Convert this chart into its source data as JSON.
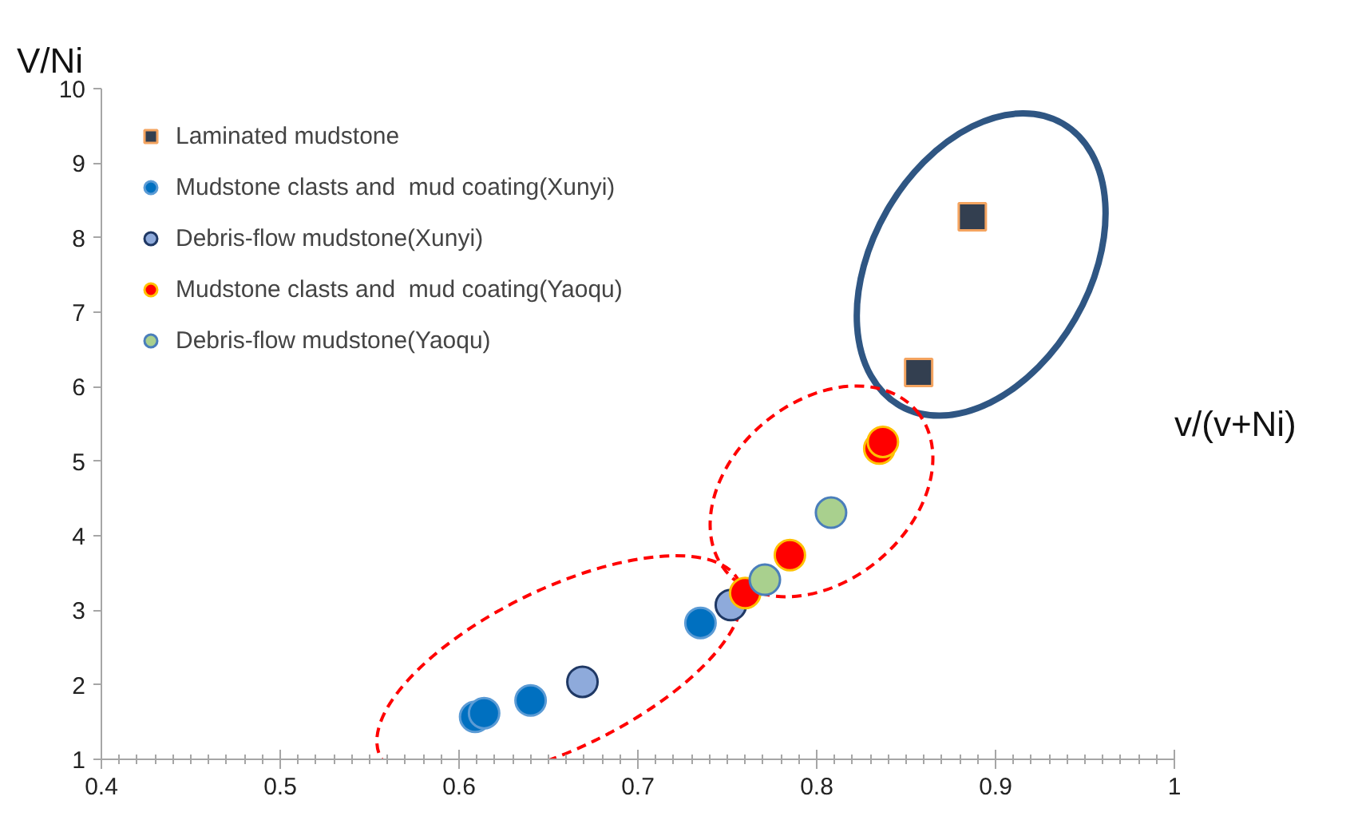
{
  "chart_data": {
    "type": "scatter",
    "xlabel": "v/(v+Ni)",
    "ylabel": "V/Ni",
    "xlim": [
      0.4,
      1.0
    ],
    "ylim": [
      1,
      10
    ],
    "xticks": [
      {
        "value": 0.4,
        "label": "0.4"
      },
      {
        "value": 0.5,
        "label": "0.5"
      },
      {
        "value": 0.6,
        "label": "0.6"
      },
      {
        "value": 0.7,
        "label": "0.7"
      },
      {
        "value": 0.8,
        "label": "0.8"
      },
      {
        "value": 0.9,
        "label": "0.9"
      },
      {
        "value": 1.0,
        "label": "1"
      }
    ],
    "yticks": [
      1,
      2,
      3,
      4,
      5,
      6,
      7,
      8,
      9,
      10
    ],
    "legend": "top left",
    "grid": false,
    "series": [
      {
        "name": "Laminated mudstone",
        "color": "#333f50",
        "marker": "square",
        "x": [
          0.887,
          0.857
        ],
        "values": [
          8.28,
          6.19
        ]
      },
      {
        "name": "Mudstone clasts and  mud coating(Xunyi)",
        "color": "#0070c0",
        "marker": "circle",
        "x": [
          0.609,
          0.614,
          0.64,
          0.735
        ],
        "values": [
          1.57,
          1.62,
          1.79,
          2.83
        ]
      },
      {
        "name": "Debris-flow mudstone(Xunyi)",
        "color": "#8eaadb",
        "marker": "circle",
        "x": [
          0.669,
          0.752
        ],
        "values": [
          2.04,
          3.07
        ]
      },
      {
        "name": "Mudstone clasts and  mud coating(Yaoqu)",
        "color": "#ff0000",
        "marker": "circle",
        "x": [
          0.76,
          0.785,
          0.835,
          0.837
        ],
        "values": [
          3.23,
          3.74,
          5.17,
          5.26
        ]
      },
      {
        "name": "Debris-flow mudstone(Yaoqu)",
        "color": "#a9d08e",
        "marker": "circle",
        "x": [
          0.771,
          0.808
        ],
        "values": [
          3.41,
          4.31
        ]
      }
    ]
  }
}
